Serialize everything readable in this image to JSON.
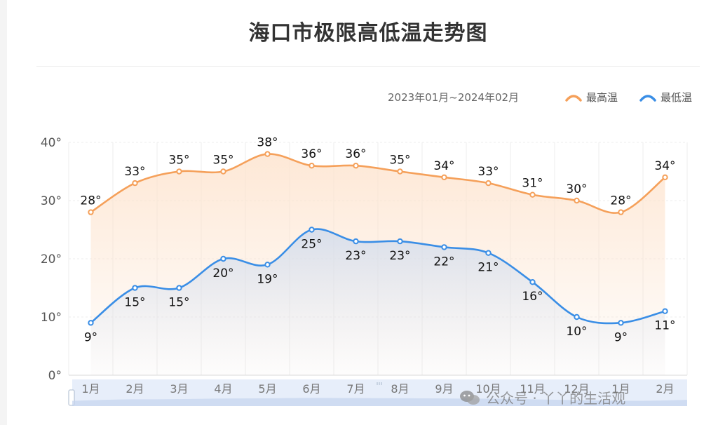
{
  "title": "海口市极限高低温走势图",
  "date_range": "2023年01月~2024年02月",
  "legend": {
    "high": "最高温",
    "low": "最低温"
  },
  "colors": {
    "high": "#f5a05a",
    "low": "#3a8ee6",
    "grid": "#ececec",
    "axis_text": "#555555"
  },
  "watermark": "公众号 · 丫丫的生活观",
  "chart_data": {
    "type": "line",
    "categories": [
      "1月",
      "2月",
      "3月",
      "4月",
      "5月",
      "6月",
      "7月",
      "8月",
      "9月",
      "10月",
      "11月",
      "12月",
      "1月",
      "2月"
    ],
    "y_ticks": [
      "0°",
      "10°",
      "20°",
      "30°",
      "40°"
    ],
    "ylim": [
      0,
      40
    ],
    "value_suffix": "°",
    "smooth": true,
    "area_fill": true,
    "legend_position": "top-right",
    "series": [
      {
        "name": "最高温",
        "key": "high",
        "values": [
          28,
          33,
          35,
          35,
          38,
          36,
          36,
          35,
          34,
          33,
          31,
          30,
          28,
          34
        ]
      },
      {
        "name": "最低温",
        "key": "low",
        "values": [
          9,
          15,
          15,
          20,
          19,
          25,
          23,
          23,
          22,
          21,
          16,
          10,
          9,
          11
        ]
      }
    ]
  }
}
